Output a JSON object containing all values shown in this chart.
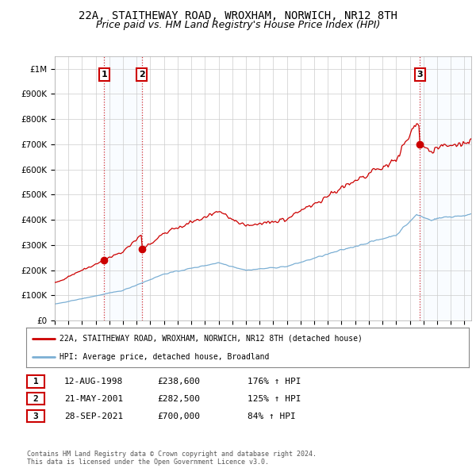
{
  "title": "22A, STAITHEWAY ROAD, WROXHAM, NORWICH, NR12 8TH",
  "subtitle": "Price paid vs. HM Land Registry's House Price Index (HPI)",
  "title_fontsize": 10,
  "subtitle_fontsize": 9,
  "background_color": "#ffffff",
  "plot_bg_color": "#ffffff",
  "grid_color": "#cccccc",
  "sale_color": "#cc0000",
  "hpi_color": "#7bafd4",
  "shade_color": "#ddeeff",
  "ylim": [
    0,
    1050000
  ],
  "yticks": [
    0,
    100000,
    200000,
    300000,
    400000,
    500000,
    600000,
    700000,
    800000,
    900000,
    1000000
  ],
  "ytick_labels": [
    "£0",
    "£100K",
    "£200K",
    "£300K",
    "£400K",
    "£500K",
    "£600K",
    "£700K",
    "£800K",
    "£900K",
    "£1M"
  ],
  "sales": [
    {
      "date_num": 1998.62,
      "price": 238600,
      "label": "1"
    },
    {
      "date_num": 2001.38,
      "price": 282500,
      "label": "2"
    },
    {
      "date_num": 2021.74,
      "price": 700000,
      "label": "3"
    }
  ],
  "sale_annotations": [
    {
      "label": "1",
      "date": "12-AUG-1998",
      "price": "£238,600",
      "pct": "176% ↑ HPI"
    },
    {
      "label": "2",
      "date": "21-MAY-2001",
      "price": "£282,500",
      "pct": "125% ↑ HPI"
    },
    {
      "label": "3",
      "date": "28-SEP-2021",
      "price": "£700,000",
      "pct": "84% ↑ HPI"
    }
  ],
  "legend_sale_label": "22A, STAITHEWAY ROAD, WROXHAM, NORWICH, NR12 8TH (detached house)",
  "legend_hpi_label": "HPI: Average price, detached house, Broadland",
  "footer": "Contains HM Land Registry data © Crown copyright and database right 2024.\nThis data is licensed under the Open Government Licence v3.0.",
  "xmin": 1995.0,
  "xmax": 2025.5,
  "xtick_years": [
    1995,
    1996,
    1997,
    1998,
    1999,
    2000,
    2001,
    2002,
    2003,
    2004,
    2005,
    2006,
    2007,
    2008,
    2009,
    2010,
    2011,
    2012,
    2013,
    2014,
    2015,
    2016,
    2017,
    2018,
    2019,
    2020,
    2021,
    2022,
    2023,
    2024,
    2025
  ]
}
